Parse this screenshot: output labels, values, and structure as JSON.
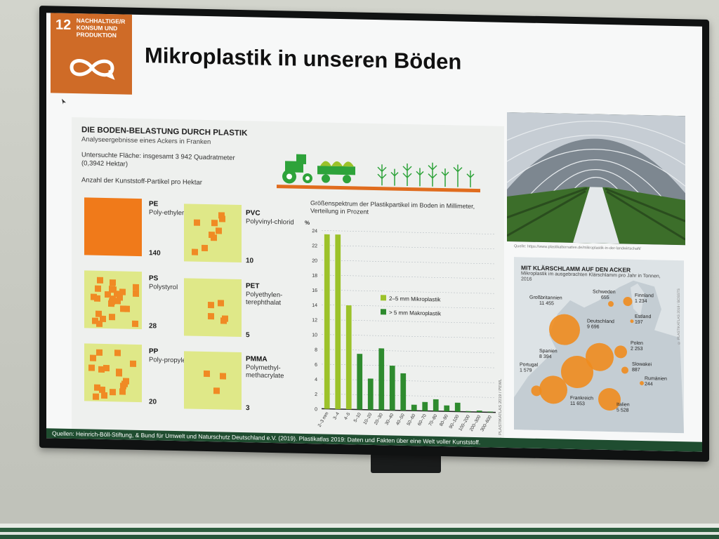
{
  "sdg": {
    "number": "12",
    "label": "NACHHALTIGE/R KONSUM UND PRODUKTION"
  },
  "slide_title": "Mikroplastik in unseren Böden",
  "infographic": {
    "heading": "DIE BODEN-BELASTUNG DURCH PLASTIK",
    "subheading": "Analyseergebnisse eines Ackers in Franken",
    "area_text": "Untersuchte Fläche: insgesamt 3 942 Quadratmeter (0,3942 Hektar)",
    "per_hectare_label": "Anzahl der Kunststoff-Partikel pro Hektar",
    "plastics": [
      {
        "code": "PE",
        "name": "Poly-ethylen",
        "count": "140"
      },
      {
        "code": "PVC",
        "name": "Polyvinyl-chlorid",
        "count": "10"
      },
      {
        "code": "PS",
        "name": "Polystyrol",
        "count": "28"
      },
      {
        "code": "PET",
        "name": "Polyethylen-terephthalat",
        "count": "5"
      },
      {
        "code": "PP",
        "name": "Poly-propylen",
        "count": "20"
      },
      {
        "code": "PMMA",
        "name": "Polymethyl-methacrylate",
        "count": "3"
      }
    ],
    "credit": "© PLASTIKATLAS 2019 / PEWL"
  },
  "chart_data": {
    "type": "bar",
    "title": "Größenspektrum der Plastikpartikel im Boden in Millimeter, Verteilung in Prozent",
    "ylabel": "%",
    "ylim": [
      0,
      24
    ],
    "yticks": [
      0,
      2,
      4,
      6,
      8,
      10,
      12,
      14,
      16,
      18,
      20,
      22,
      24
    ],
    "categories": [
      "2–3 mm",
      "3–4",
      "4–5",
      "5–10",
      "10–20",
      "20–30",
      "30–40",
      "40–50",
      "50–60",
      "60–70",
      "70–80",
      "80–90",
      "90–100",
      "100–200",
      "200–300",
      "300–600"
    ],
    "series": [
      {
        "name": "2–5 mm Mikroplastik",
        "color": "#9cc22a",
        "values": [
          23.5,
          23.5,
          14,
          null,
          null,
          null,
          null,
          null,
          null,
          null,
          null,
          null,
          null,
          null,
          null,
          null
        ]
      },
      {
        "name": "> 5 mm Makroplastik",
        "color": "#2e8b2e",
        "values": [
          null,
          null,
          null,
          7.5,
          4.2,
          8.3,
          6,
          5,
          0.8,
          1.2,
          1.6,
          0.8,
          1.2,
          0.1,
          0.2,
          0.1
        ]
      }
    ],
    "legend_position": "right-middle",
    "grid": true
  },
  "photo": {
    "source": "Quelle: https://www.plastikalternative.de/mikroplastik-in-der-landwirtschaft/"
  },
  "map": {
    "title": "MIT KLÄRSCHLAMM AUF DEN ACKER",
    "subtitle": "Mikroplastik im ausgebrachten Klärschlamm pro Jahr in Tonnen, 2016",
    "countries": [
      {
        "name": "Großbritannien",
        "value": "11 455"
      },
      {
        "name": "Schweden",
        "value": "655"
      },
      {
        "name": "Finnland",
        "value": "1 234"
      },
      {
        "name": "Estland",
        "value": "197"
      },
      {
        "name": "Deutschland",
        "value": "9 696"
      },
      {
        "name": "Polen",
        "value": "2 253"
      },
      {
        "name": "Slowakei",
        "value": "887"
      },
      {
        "name": "Rumänien",
        "value": "244"
      },
      {
        "name": "Spanien",
        "value": "8 394"
      },
      {
        "name": "Portugal",
        "value": "1 579"
      },
      {
        "name": "Frankreich",
        "value": "11 653"
      },
      {
        "name": "Italien",
        "value": "5 528"
      }
    ],
    "credit": "© PLASTIKATLAS 2019 / BOSSTS"
  },
  "footer": {
    "sources": "Quellen: Heinrich-Böll-Stiftung, & Bund für Umwelt und Naturschutz Deutschland e.V. (2019). Plastikatlas 2019: Daten und Fakten über eine Welt voller Kunststoff."
  }
}
